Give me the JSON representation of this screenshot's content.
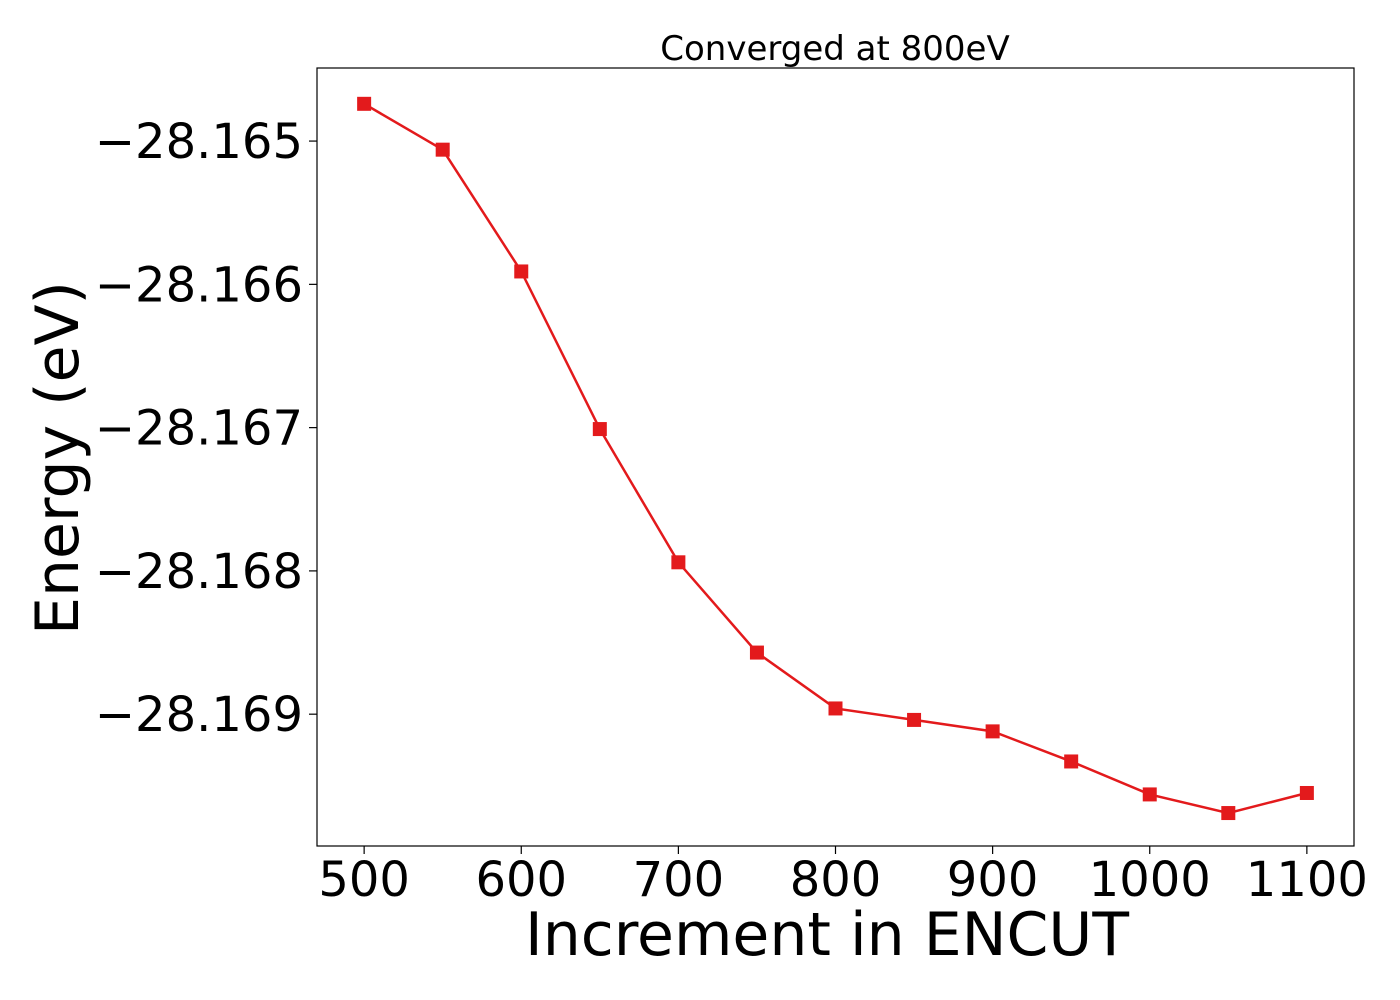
{
  "chart_data": {
    "type": "line",
    "title": "Converged at 800eV",
    "xlabel": "Increment in ENCUT",
    "ylabel": "Energy (eV)",
    "x": [
      500,
      550,
      600,
      650,
      700,
      750,
      800,
      850,
      900,
      950,
      1000,
      1050,
      1100
    ],
    "series": [
      {
        "values": [
          -28.16474,
          -28.16506,
          -28.16591,
          -28.16701,
          -28.16794,
          -28.16857,
          -28.16896,
          -28.16904,
          -28.16912,
          -28.16933,
          -28.16956,
          -28.16969,
          -28.16955
        ]
      }
    ],
    "xlim": [
      470,
      1130
    ],
    "ylim": [
      -28.16992,
      -28.16449
    ],
    "xticks": [
      500,
      600,
      700,
      800,
      900,
      1000,
      1100
    ],
    "xtick_labels": [
      "500",
      "600",
      "700",
      "800",
      "900",
      "1000",
      "1100"
    ],
    "yticks": [
      -28.165,
      -28.166,
      -28.167,
      -28.168,
      -28.169
    ],
    "ytick_labels": [
      "−28.165",
      "−28.166",
      "−28.167",
      "−28.168",
      "−28.169"
    ],
    "grid": false,
    "line_color": "#e31a1c",
    "marker": "square"
  }
}
